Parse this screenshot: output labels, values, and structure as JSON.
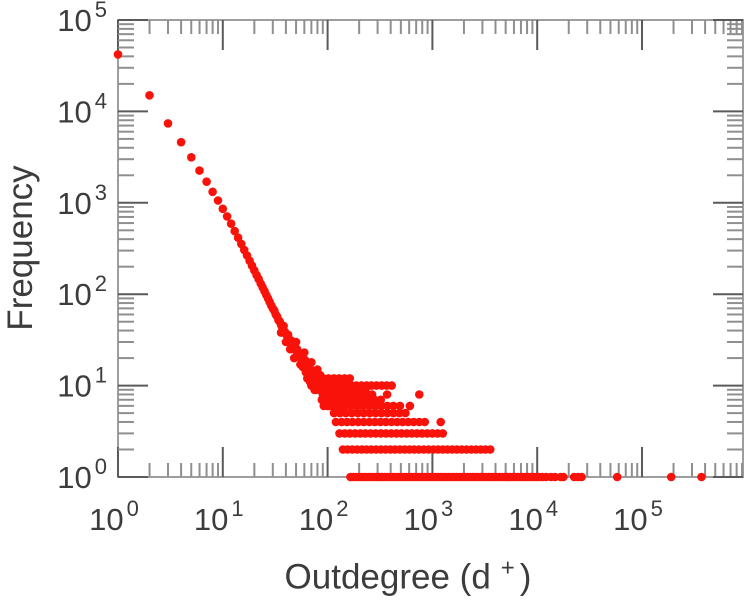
{
  "figure": {
    "ylabel": "Frequency",
    "xlabel_prefix": "Outdegree (d",
    "xlabel_sup": "+",
    "xlabel_suffix": ")"
  },
  "chart_data": {
    "type": "scatter",
    "title": "",
    "xlabel": "Outdegree (d⁺)",
    "ylabel": "Frequency",
    "x_scale": "log",
    "y_scale": "log",
    "xlim": [
      1,
      920000
    ],
    "ylim": [
      1,
      100000
    ],
    "x_tick_exponents": [
      0,
      1,
      2,
      3,
      4,
      5
    ],
    "y_tick_exponents": [
      0,
      1,
      2,
      3,
      4,
      5
    ],
    "grid": false,
    "legend": false,
    "marker": {
      "shape": "circle",
      "color": "#f8120a",
      "radius_px": 4.3
    },
    "head_points": [
      [
        1,
        42000
      ],
      [
        2,
        15000
      ],
      [
        3,
        7400
      ],
      [
        4,
        4600
      ],
      [
        5,
        3150
      ],
      [
        6,
        2250
      ],
      [
        7,
        1700
      ],
      [
        8,
        1320
      ],
      [
        9,
        1060
      ],
      [
        10,
        860
      ],
      [
        11,
        710
      ],
      [
        12,
        590
      ],
      [
        13,
        490
      ],
      [
        14,
        415
      ],
      [
        15,
        355
      ],
      [
        16,
        305
      ],
      [
        17,
        265
      ],
      [
        18,
        232
      ],
      [
        19,
        205
      ],
      [
        20,
        182
      ],
      [
        21,
        162
      ],
      [
        22,
        146
      ],
      [
        23,
        131
      ],
      [
        24,
        119
      ],
      [
        25,
        108
      ],
      [
        26,
        98
      ],
      [
        27,
        90
      ],
      [
        28,
        82
      ],
      [
        29,
        75
      ],
      [
        30,
        70
      ]
    ],
    "band_points": [
      [
        31,
        66
      ],
      [
        32,
        60
      ],
      [
        33,
        57
      ],
      [
        34,
        52
      ],
      [
        35,
        50
      ],
      [
        36,
        46
      ],
      [
        36,
        38
      ],
      [
        37,
        43
      ],
      [
        38,
        45
      ],
      [
        39,
        39
      ],
      [
        40,
        37
      ],
      [
        40,
        30
      ],
      [
        41,
        35
      ],
      [
        42,
        36
      ],
      [
        43,
        32
      ],
      [
        44,
        30
      ],
      [
        44,
        25
      ],
      [
        45,
        31
      ],
      [
        46,
        28
      ],
      [
        47,
        27
      ],
      [
        48,
        28
      ],
      [
        48,
        20
      ],
      [
        49,
        25
      ],
      [
        50,
        24
      ],
      [
        50,
        30
      ],
      [
        51,
        25
      ],
      [
        52,
        22
      ],
      [
        53,
        23
      ],
      [
        54,
        21
      ],
      [
        55,
        22
      ],
      [
        55,
        17
      ],
      [
        56,
        20
      ],
      [
        57,
        21
      ],
      [
        58,
        19
      ],
      [
        58,
        16
      ],
      [
        60,
        18
      ],
      [
        60,
        23
      ],
      [
        61,
        19
      ],
      [
        62,
        17
      ],
      [
        62,
        14
      ],
      [
        63,
        18
      ],
      [
        64,
        16
      ],
      [
        65,
        17
      ],
      [
        65,
        12
      ],
      [
        66,
        15
      ],
      [
        67,
        16
      ],
      [
        68,
        14
      ],
      [
        68,
        11
      ],
      [
        69,
        15
      ],
      [
        70,
        14
      ],
      [
        70,
        18
      ],
      [
        71,
        13
      ],
      [
        72,
        14
      ],
      [
        72,
        10
      ],
      [
        73,
        12
      ],
      [
        74,
        13
      ],
      [
        75,
        12
      ],
      [
        75,
        9
      ],
      [
        76,
        13
      ],
      [
        76,
        9
      ],
      [
        78,
        11
      ],
      [
        79,
        12
      ],
      [
        80,
        11
      ],
      [
        80,
        15
      ],
      [
        82,
        10
      ],
      [
        83,
        11
      ],
      [
        84,
        10
      ],
      [
        85,
        9
      ],
      [
        85,
        13
      ],
      [
        86,
        10
      ],
      [
        88,
        9
      ],
      [
        88,
        7
      ],
      [
        90,
        8
      ],
      [
        90,
        12
      ],
      [
        92,
        9
      ],
      [
        92,
        6
      ],
      [
        94,
        8
      ],
      [
        95,
        7
      ],
      [
        95,
        11
      ],
      [
        96,
        8
      ],
      [
        98,
        7
      ],
      [
        100,
        6
      ],
      [
        100,
        10
      ],
      [
        102,
        7
      ],
      [
        104,
        6
      ]
    ],
    "frequency_stripes": [
      {
        "f": 12,
        "d": [
          64,
          72,
          81,
          91,
          102,
          115,
          129,
          145,
          163
        ]
      },
      {
        "f": 10,
        "d": [
          70,
          78,
          87,
          97,
          108,
          121,
          135,
          151,
          168,
          188,
          210,
          235,
          262,
          293,
          328,
          366,
          409
        ]
      },
      {
        "f": 9,
        "d": [
          78,
          88,
          99,
          112,
          126,
          142,
          160,
          181,
          204,
          230
        ]
      },
      {
        "f": 8,
        "d": [
          100,
          115,
          132,
          152,
          175,
          201,
          231,
          266,
          370,
          750
        ]
      },
      {
        "f": 7,
        "d": [
          105,
          121,
          139,
          160,
          184,
          212,
          243,
          280,
          322
        ]
      },
      {
        "f": 6,
        "d": [
          110,
          126,
          144,
          165,
          189,
          216,
          247,
          283,
          324,
          371,
          424,
          490,
          610
        ]
      },
      {
        "f": 5,
        "d": [
          115,
          131,
          149,
          170,
          194,
          221,
          252,
          287,
          327,
          373,
          425,
          484,
          552
        ]
      },
      {
        "f": 4,
        "d": [
          120,
          136,
          153,
          173,
          196,
          221,
          250,
          282,
          319,
          360,
          407,
          460,
          520,
          587,
          663,
          750,
          847,
          1200
        ]
      },
      {
        "f": 3,
        "d": [
          130,
          146,
          163,
          183,
          205,
          229,
          257,
          288,
          322,
          361,
          404,
          453,
          507,
          568,
          636,
          712,
          798,
          894,
          1001,
          1121,
          1256
        ]
      },
      {
        "f": 2,
        "d": [
          140,
          155,
          172,
          191,
          212,
          235,
          261,
          290,
          322,
          358,
          397,
          441,
          490,
          544,
          604,
          671,
          745,
          827,
          918,
          1019,
          1131,
          1256,
          1394,
          1548,
          1718,
          1907,
          2117,
          2350,
          2609,
          2896,
          3215,
          3569
        ]
      },
      {
        "f": 1,
        "d": [
          165,
          175,
          186,
          197,
          209,
          221,
          234,
          248,
          263,
          279,
          296,
          314,
          333,
          353,
          374,
          396,
          420,
          445,
          472,
          500,
          530,
          562,
          596,
          632,
          670,
          710,
          753,
          798,
          846,
          897,
          951,
          1008,
          1068,
          1132,
          1200,
          1272,
          1348,
          1429,
          1515,
          1606,
          1702,
          1804,
          1912,
          2027,
          2149,
          2278,
          2415,
          2560,
          2714,
          2877,
          3050,
          3233,
          3427,
          3633,
          3851,
          4082,
          4327,
          4587,
          4862,
          5154,
          5463,
          5791,
          6138,
          6506,
          6896,
          7310,
          7749,
          8214,
          8707,
          9229,
          9783,
          10370,
          11200,
          12200,
          13500,
          14800,
          16800,
          17800,
          22500,
          24500,
          26500,
          58000,
          190000,
          370000
        ]
      }
    ],
    "axis_colors": {
      "border": "#9e9e9e",
      "major_tick": "#5a5a5a",
      "minor_tick": "#8f8f8f",
      "label": "#3c3c3c"
    }
  }
}
